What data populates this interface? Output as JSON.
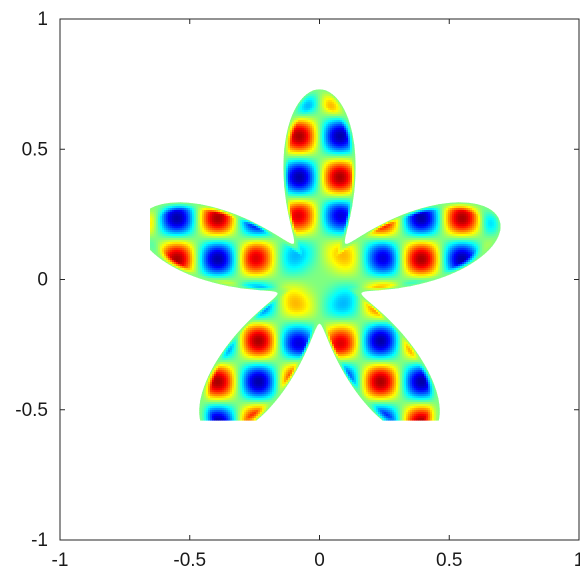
{
  "chart_data": {
    "type": "heatmap",
    "title": "",
    "xlabel": "",
    "ylabel": "",
    "xlim": [
      -1,
      1
    ],
    "ylim": [
      -1,
      1
    ],
    "xticks": [
      -1,
      -0.5,
      0,
      0.5,
      1
    ],
    "yticks": [
      -1,
      -0.5,
      0,
      0.5,
      1
    ],
    "xtick_labels": [
      "-1",
      "-0.5",
      "0",
      "0.5",
      "1"
    ],
    "ytick_labels": [
      "-1",
      "-0.5",
      "0",
      "0.5",
      "1"
    ],
    "grid": false,
    "colormap": "jet",
    "domain_shape": "five-armed star",
    "domain_arm_count": 5,
    "domain_radius_base": 0.45,
    "domain_radius_amplitude": 0.28,
    "field_range": [
      -1,
      1
    ],
    "background_color": "#ffffff"
  }
}
